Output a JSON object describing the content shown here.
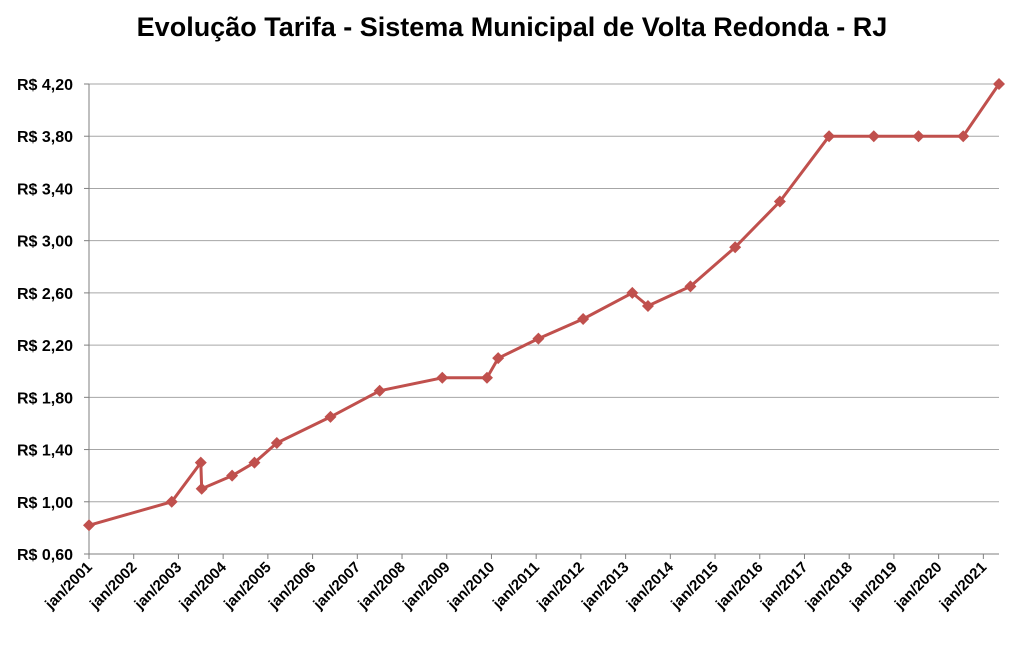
{
  "chart_data": {
    "type": "line",
    "title": "Evolução Tarifa - Sistema Municipal de Volta Redonda - RJ",
    "xlabel": "",
    "ylabel": "",
    "ylim": [
      0.6,
      4.2
    ],
    "y_ticks": [
      0.6,
      1.0,
      1.4,
      1.8,
      2.2,
      2.6,
      3.0,
      3.4,
      3.8,
      4.2
    ],
    "y_tick_labels": [
      "R$ 0,60",
      "R$ 1,00",
      "R$ 1,40",
      "R$ 1,80",
      "R$ 2,20",
      "R$ 2,60",
      "R$ 3,00",
      "R$ 3,40",
      "R$ 3,80",
      "R$ 4,20"
    ],
    "xlim": [
      2001.0,
      2021.35
    ],
    "x_ticks": [
      2001,
      2002,
      2003,
      2004,
      2005,
      2006,
      2007,
      2008,
      2009,
      2010,
      2011,
      2012,
      2013,
      2014,
      2015,
      2016,
      2017,
      2018,
      2019,
      2020,
      2021
    ],
    "x_tick_labels": [
      "jan/2001",
      "jan/2002",
      "jan/2003",
      "jan/2004",
      "jan/2005",
      "jan/2006",
      "jan/2007",
      "jan/2008",
      "jan/2009",
      "jan/2010",
      "jan/2011",
      "jan/2012",
      "jan/2013",
      "jan/2014",
      "jan/2015",
      "jan/2016",
      "jan/2017",
      "jan/2018",
      "jan/2019",
      "jan/2020",
      "jan/2021"
    ],
    "grid": true,
    "legend": "none",
    "line_color": "#c0504d",
    "series": [
      {
        "x": [
          2001.0,
          2002.85,
          2003.5,
          2003.52,
          2004.2,
          2004.7,
          2005.2,
          2006.4,
          2007.5,
          2008.9,
          2009.9,
          2010.15,
          2011.05,
          2012.05,
          2013.15,
          2013.5,
          2014.45,
          2015.45,
          2016.45,
          2017.55,
          2018.55,
          2019.55,
          2020.55,
          2021.35
        ],
        "y": [
          0.82,
          1.0,
          1.3,
          1.1,
          1.2,
          1.3,
          1.45,
          1.65,
          1.85,
          1.95,
          1.95,
          2.1,
          2.25,
          2.4,
          2.6,
          2.5,
          2.65,
          2.95,
          3.3,
          3.8,
          3.8,
          3.8,
          3.8,
          4.2
        ]
      }
    ]
  }
}
